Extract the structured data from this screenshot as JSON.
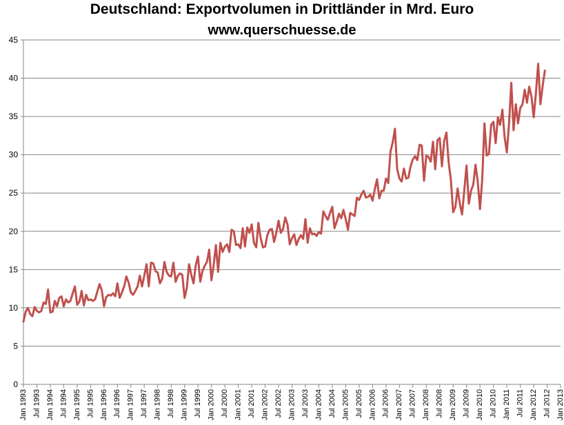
{
  "chart_data": {
    "type": "line",
    "title": "Deutschland:  Exportvolumen  in Drittländer  in Mrd. Euro",
    "subtitle": "www.querschuesse.de",
    "xlabel": "",
    "ylabel": "",
    "ylim": [
      0,
      45
    ],
    "yticks": [
      0,
      5,
      10,
      15,
      20,
      25,
      30,
      35,
      40,
      45
    ],
    "xticks": [
      "Jan 1993",
      "Jul 1993",
      "Jan 1994",
      "Jul 1994",
      "Jan 1995",
      "Jul 1995",
      "Jan 1996",
      "Jul 1996",
      "Jan 1997",
      "Jul 1997",
      "Jan 1998",
      "Jul 1998",
      "Jan 1999",
      "Jul 1999",
      "Jan 2000",
      "Jul 2000",
      "Jan 2001",
      "Jul 2001",
      "Jan 2002",
      "Jul 2002",
      "Jan 2003",
      "Jul 2003",
      "Jan 2004",
      "Jul 2004",
      "Jan 2005",
      "Jul 2005",
      "Jan 2006",
      "Jul 2006",
      "Jan 2007",
      "Jul 2007",
      "Jan 2008",
      "Jul 2008",
      "Jan 2009",
      "Jul 2009",
      "Jan 2010",
      "Jul 2010",
      "Jan 2011",
      "Jul 2011",
      "Jan 2012",
      "Jul 2012",
      "Jan 2013"
    ],
    "grid": true,
    "legend": "none",
    "color": "#c0504d",
    "series": [
      {
        "start": "1993-01",
        "values": [
          8.2,
          9.5,
          10.0,
          9.2,
          8.9,
          10.1,
          9.6,
          9.4,
          9.6,
          10.7,
          10.5,
          12.4,
          9.4,
          9.5,
          10.9,
          10.2,
          11.3,
          11.5,
          10.2,
          11.1,
          10.7,
          10.9,
          11.9,
          12.8,
          10.4,
          10.8,
          12.2,
          10.3,
          11.7,
          11.0,
          11.1,
          10.9,
          11.1,
          12.1,
          13.1,
          12.3,
          10.2,
          11.4,
          11.7,
          11.6,
          11.9,
          11.5,
          13.2,
          11.3,
          12.0,
          12.8,
          14.1,
          13.3,
          12.0,
          11.7,
          12.2,
          12.8,
          14.2,
          12.8,
          14.2,
          15.7,
          12.8,
          15.9,
          15.8,
          14.8,
          14.6,
          13.2,
          13.8,
          16.0,
          14.7,
          14.2,
          14.1,
          15.9,
          13.4,
          14.2,
          14.5,
          14.3,
          11.3,
          12.6,
          15.7,
          14.3,
          13.2,
          15.6,
          16.7,
          13.4,
          14.8,
          15.5,
          16.0,
          17.6,
          13.6,
          15.6,
          18.2,
          14.7,
          18.5,
          17.3,
          18.0,
          18.3,
          17.3,
          20.2,
          20.0,
          18.2,
          18.3,
          17.8,
          20.4,
          18.0,
          20.5,
          19.8,
          20.9,
          18.5,
          17.9,
          21.1,
          19.1,
          17.9,
          18.0,
          19.5,
          20.2,
          20.3,
          18.6,
          19.8,
          21.4,
          19.8,
          20.3,
          21.8,
          20.9,
          18.3,
          19.1,
          19.6,
          18.2,
          19.0,
          19.5,
          19.0,
          21.6,
          18.5,
          20.4,
          19.6,
          19.7,
          19.4,
          19.9,
          19.7,
          22.6,
          22.0,
          21.5,
          22.4,
          23.2,
          20.4,
          21.3,
          22.3,
          21.7,
          22.8,
          21.6,
          20.2,
          22.4,
          22.2,
          22.0,
          24.4,
          24.1,
          24.8,
          25.3,
          24.4,
          24.5,
          24.8,
          24.0,
          25.5,
          26.8,
          24.3,
          25.3,
          25.3,
          26.9,
          26.3,
          30.4,
          31.6,
          33.4,
          28.1,
          26.9,
          26.5,
          28.2,
          26.9,
          27.0,
          28.5,
          29.4,
          29.8,
          29.3,
          31.3,
          31.2,
          26.6,
          29.9,
          29.7,
          29.1,
          31.7,
          28.1,
          31.9,
          32.2,
          28.5,
          31.8,
          32.9,
          29.0,
          26.7,
          22.5,
          23.2,
          25.6,
          23.6,
          22.2,
          25.4,
          28.6,
          23.6,
          25.3,
          26.1,
          28.7,
          26.5,
          22.9,
          26.8,
          34.1,
          29.9,
          30.1,
          33.9,
          34.3,
          31.5,
          34.9,
          33.9,
          35.9,
          32.3,
          30.3,
          34.2,
          39.4,
          33.2,
          36.6,
          34.1,
          36.1,
          36.6,
          38.5,
          36.8,
          38.9,
          37.6,
          34.9,
          38.1,
          41.9,
          36.6,
          39.0,
          41.0
        ]
      }
    ]
  }
}
